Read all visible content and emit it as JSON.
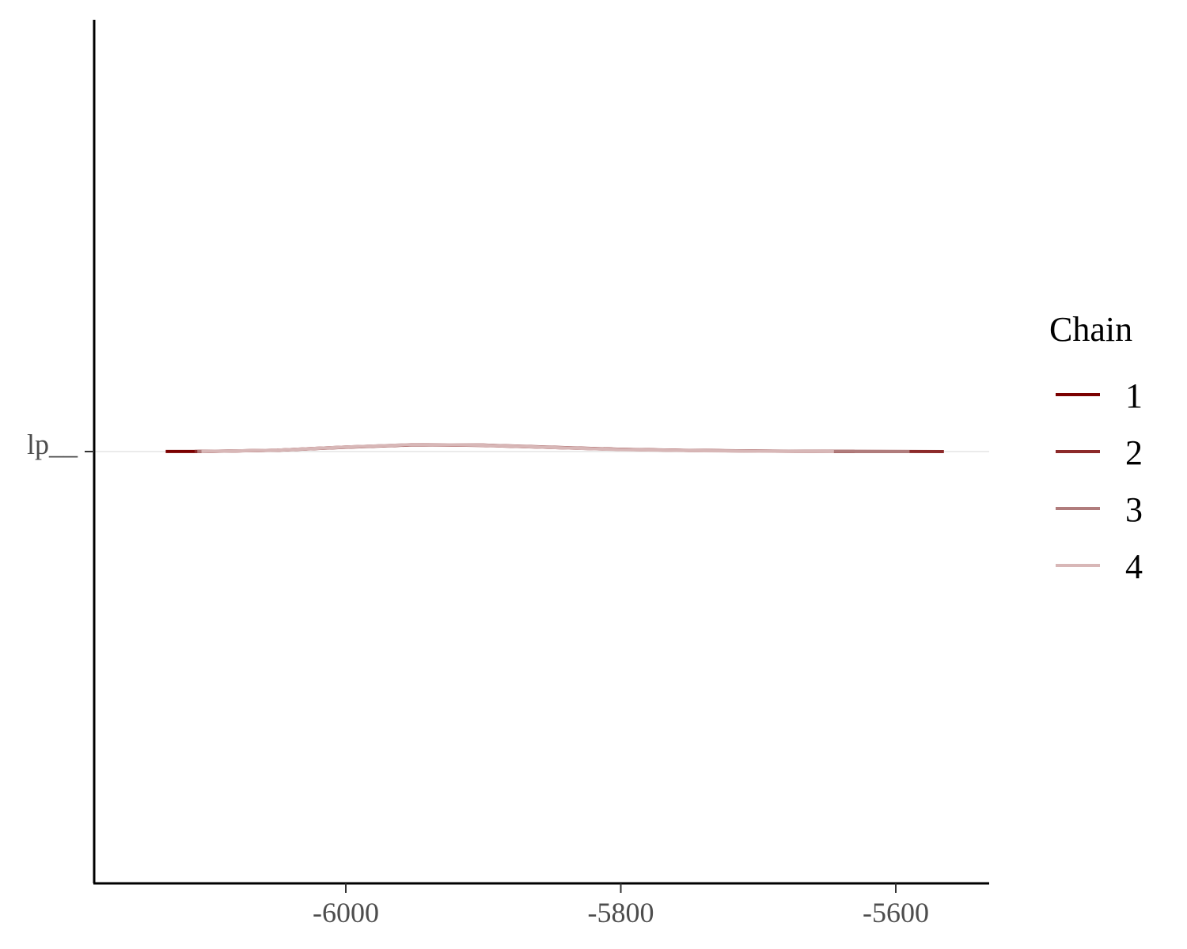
{
  "chart_data": {
    "type": "area",
    "title": "",
    "xlabel": "",
    "ylabel": "",
    "xlim": [
      -6150,
      -5550
    ],
    "x_ticks": [
      -6000,
      -5800,
      -5600
    ],
    "x_tick_labels": [
      "-6000",
      "-5800",
      "-5600"
    ],
    "y_categories": [
      "lp__"
    ],
    "y_tick_labels": [
      "lp__"
    ],
    "grid": false,
    "legend": {
      "title": "Chain",
      "placement": "right",
      "entries": [
        "1",
        "2",
        "3",
        "4"
      ]
    },
    "series": [
      {
        "name": "1",
        "color": "#7b0000",
        "x": [
          -6131,
          -6100,
          -6050,
          -6000,
          -5950,
          -5900,
          -5850,
          -5800,
          -5750,
          -5700,
          -5650,
          -5630
        ],
        "density": [
          4e-05,
          0.0001,
          0.0012,
          0.0038,
          0.0058,
          0.0052,
          0.0034,
          0.0018,
          0.0009,
          0.0004,
          0.0001,
          4e-05
        ]
      },
      {
        "name": "2",
        "color": "#8c2a2a",
        "x": [
          -6110,
          -6050,
          -6000,
          -5950,
          -5900,
          -5850,
          -5800,
          -5750,
          -5700,
          -5650,
          -5600,
          -5565
        ],
        "density": [
          4e-05,
          0.0011,
          0.0036,
          0.0057,
          0.0055,
          0.0037,
          0.0019,
          0.001,
          0.0005,
          0.0002,
          0.0001,
          3e-05
        ]
      },
      {
        "name": "3",
        "color": "#b07c7c",
        "x": [
          -6108,
          -6050,
          -6000,
          -5950,
          -5900,
          -5850,
          -5800,
          -5750,
          -5700,
          -5650,
          -5620,
          -5590
        ],
        "density": [
          4e-05,
          0.0012,
          0.0037,
          0.0059,
          0.0054,
          0.0035,
          0.0018,
          0.0009,
          0.0004,
          0.0002,
          0.0001,
          3e-05
        ]
      },
      {
        "name": "4",
        "color": "#d8b7b7",
        "x": [
          -6105,
          -6050,
          -6000,
          -5950,
          -5900,
          -5850,
          -5800,
          -5750,
          -5700,
          -5660,
          -5645
        ],
        "density": [
          4e-05,
          0.0012,
          0.0038,
          0.006,
          0.0053,
          0.0034,
          0.0017,
          0.0008,
          0.0003,
          0.0001,
          3e-05
        ]
      }
    ]
  }
}
